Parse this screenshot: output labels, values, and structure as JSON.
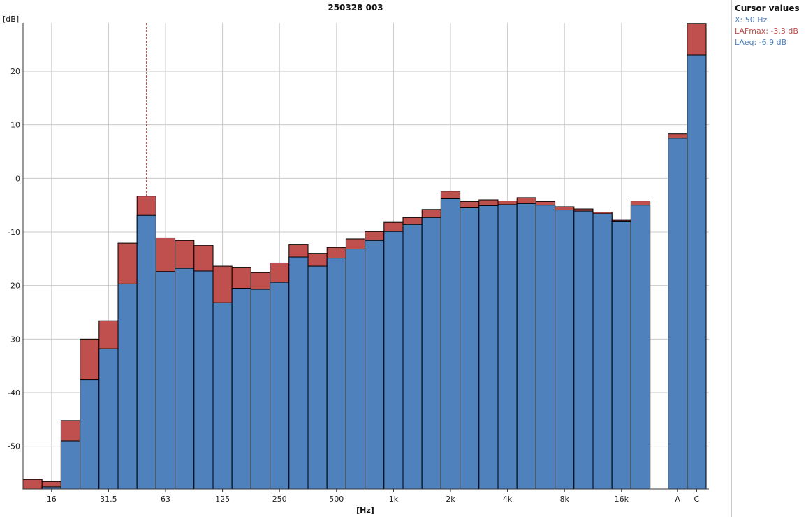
{
  "colors": {
    "lafmax": "#c0504d",
    "laeq": "#4f81bd",
    "grid": "#c9c9c9",
    "cursor": "#8b1a1a"
  },
  "cursor_panel": {
    "title": "Cursor values",
    "x": "X: 50 Hz",
    "lafmax": "LAFmax: -3.3 dB",
    "laeq": "LAeq: -6.9 dB"
  },
  "chart_data": {
    "type": "bar",
    "title": "250328 003",
    "ylabel": "[dB]",
    "xlabel": "[Hz]",
    "ylim": [
      -58,
      29
    ],
    "y_ticks": [
      20,
      10,
      0,
      -10,
      -20,
      -30,
      -40,
      -50
    ],
    "grid": true,
    "cursor_band": "50",
    "categories": [
      "12.5",
      "16",
      "20",
      "25",
      "31.5",
      "40",
      "50",
      "63",
      "80",
      "100",
      "125",
      "160",
      "200",
      "250",
      "315",
      "400",
      "500",
      "630",
      "800",
      "1k",
      "1.25k",
      "1.6k",
      "2k",
      "2.5k",
      "3.15k",
      "4k",
      "5k",
      "6.3k",
      "8k",
      "10k",
      "12.5k",
      "16k",
      "20k",
      "A",
      "C"
    ],
    "x_tick_labels": [
      {
        "category": "16",
        "label": "16"
      },
      {
        "category": "31.5",
        "label": "31.5"
      },
      {
        "category": "63",
        "label": "63"
      },
      {
        "category": "125",
        "label": "125"
      },
      {
        "category": "250",
        "label": "250"
      },
      {
        "category": "500",
        "label": "500"
      },
      {
        "category": "1k",
        "label": "1k"
      },
      {
        "category": "2k",
        "label": "2k"
      },
      {
        "category": "4k",
        "label": "4k"
      },
      {
        "category": "8k",
        "label": "8k"
      },
      {
        "category": "16k",
        "label": "16k"
      },
      {
        "category": "A",
        "label": "A"
      },
      {
        "category": "C",
        "label": "C"
      }
    ],
    "series": [
      {
        "name": "LAFmax",
        "values": [
          -56.2,
          -56.6,
          -45.2,
          -30.0,
          -26.6,
          -12.1,
          -3.3,
          -11.1,
          -11.6,
          -12.5,
          -16.4,
          -16.6,
          -17.6,
          -15.8,
          -12.3,
          -14.0,
          -12.9,
          -11.3,
          -9.9,
          -8.2,
          -7.3,
          -5.8,
          -2.4,
          -4.3,
          -4.0,
          -4.2,
          -3.6,
          -4.3,
          -5.3,
          -5.7,
          -6.3,
          -7.8,
          -4.2,
          8.3,
          28.9
        ]
      },
      {
        "name": "LAeq",
        "values": [
          -58.0,
          -57.6,
          -49.0,
          -37.6,
          -31.8,
          -19.7,
          -6.9,
          -17.4,
          -16.8,
          -17.3,
          -23.2,
          -20.5,
          -20.7,
          -19.4,
          -14.7,
          -16.4,
          -14.9,
          -13.2,
          -11.6,
          -9.9,
          -8.6,
          -7.3,
          -3.8,
          -5.5,
          -5.1,
          -4.9,
          -4.7,
          -5.0,
          -5.9,
          -6.1,
          -6.6,
          -8.1,
          -5.0,
          7.5,
          23.0
        ]
      }
    ]
  }
}
